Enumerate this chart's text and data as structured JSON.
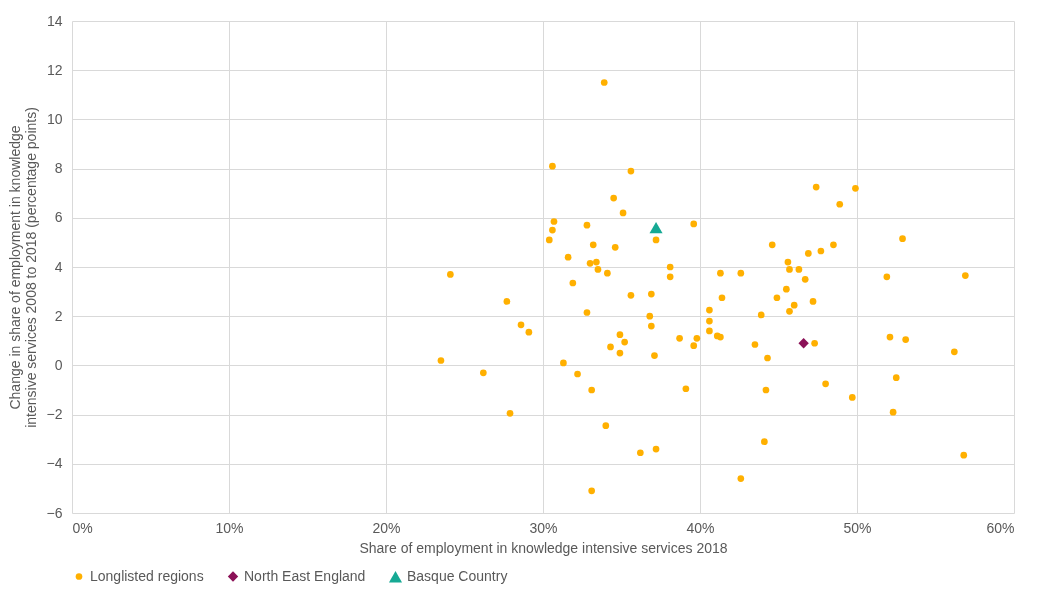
{
  "chart_data": {
    "type": "scatter",
    "xlabel": "Share of employment  in knowledge  intensive services 2018",
    "ylabel": "Change in share of employment  in knowledge  intensive services 2008 to 2018 (percentage points)",
    "xlim": [
      0,
      60
    ],
    "xticks": [
      {
        "value": 0,
        "label": "0%"
      },
      {
        "value": 10,
        "label": "10%"
      },
      {
        "value": 20,
        "label": "20%"
      },
      {
        "value": 30,
        "label": "30%"
      },
      {
        "value": 40,
        "label": "40%"
      },
      {
        "value": 50,
        "label": "50%"
      },
      {
        "value": 60,
        "label": "60%"
      }
    ],
    "ylim": [
      -6,
      14
    ],
    "yticks": [
      -6,
      -4,
      -2,
      0,
      2,
      4,
      6,
      8,
      10,
      12,
      14
    ],
    "grid": true,
    "legend": "bottom",
    "series": [
      {
        "name": "Longlisted regions",
        "color": "#ffb000",
        "marker": "circle",
        "x": [
          33.9,
          30.6,
          35.6,
          34.5,
          35.1,
          30.7,
          30.6,
          30.4,
          32.8,
          39.6,
          37.2,
          33.2,
          34.6,
          31.6,
          33.0,
          33.4,
          33.5,
          34.1,
          38.1,
          38.1,
          24.1,
          41.3,
          31.9,
          27.7,
          28.6,
          29.1,
          23.5,
          26.2,
          27.9,
          31.3,
          32.2,
          33.1,
          32.8,
          35.6,
          36.9,
          36.8,
          36.9,
          34.9,
          35.2,
          34.3,
          34.9,
          37.1,
          38.7,
          39.8,
          39.6,
          40.6,
          40.6,
          40.6,
          41.1,
          41.3,
          41.4,
          39.1,
          34.0,
          36.2,
          37.2,
          33.1,
          47.4,
          49.9,
          48.9,
          52.9,
          44.6,
          46.9,
          47.7,
          48.5,
          45.6,
          45.7,
          46.3,
          46.7,
          42.6,
          51.9,
          56.9,
          44.9,
          45.5,
          46.0,
          45.7,
          47.2,
          43.9,
          43.5,
          44.3,
          47.3,
          52.1,
          53.1,
          56.2,
          44.2,
          48.0,
          49.7,
          52.5,
          52.3,
          44.1,
          56.8,
          42.6
        ],
        "values": [
          11.5,
          8.1,
          7.9,
          6.8,
          6.2,
          5.85,
          5.5,
          5.1,
          5.7,
          5.75,
          5.1,
          4.9,
          4.8,
          4.4,
          4.15,
          4.2,
          3.9,
          3.75,
          4.0,
          3.6,
          3.7,
          3.75,
          3.35,
          2.6,
          1.65,
          1.35,
          0.2,
          -0.3,
          -1.95,
          0.1,
          -0.35,
          -1.0,
          2.15,
          2.85,
          2.9,
          2.0,
          1.6,
          1.25,
          0.95,
          0.75,
          0.5,
          0.4,
          1.1,
          1.1,
          0.8,
          2.25,
          1.8,
          1.4,
          1.2,
          1.15,
          2.75,
          -0.95,
          -2.45,
          -3.55,
          -3.4,
          -5.1,
          7.25,
          7.2,
          6.55,
          5.15,
          4.9,
          4.55,
          4.65,
          4.9,
          4.2,
          3.9,
          3.9,
          3.5,
          3.75,
          3.6,
          3.65,
          2.75,
          3.1,
          2.45,
          2.2,
          2.6,
          2.05,
          0.85,
          0.3,
          0.9,
          1.15,
          1.05,
          0.55,
          -1.0,
          -0.75,
          -1.3,
          -0.5,
          -1.9,
          -3.1,
          -3.65,
          -4.6
        ]
      },
      {
        "name": "North East England",
        "color": "#8b1157",
        "marker": "diamond",
        "x": [
          46.6
        ],
        "values": [
          0.9
        ]
      },
      {
        "name": "Basque Country",
        "color": "#16a994",
        "marker": "triangle",
        "x": [
          37.2
        ],
        "values": [
          5.6
        ]
      }
    ]
  }
}
